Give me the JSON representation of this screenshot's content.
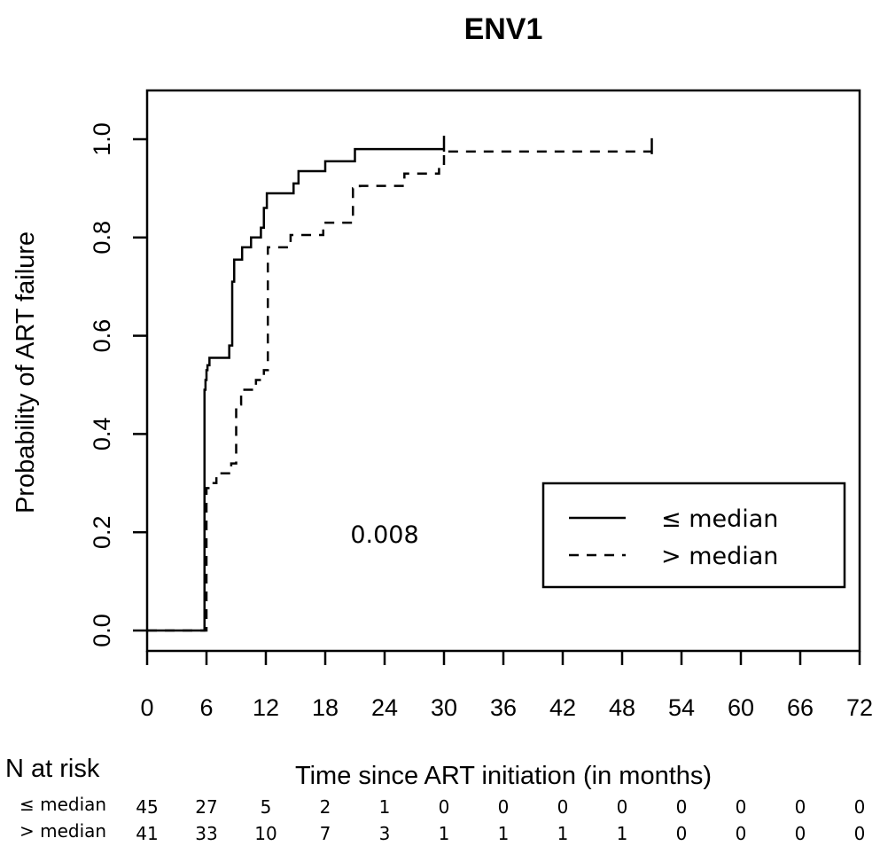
{
  "chart_data": {
    "type": "line",
    "subtype": "kaplan-meier step",
    "title": "ENV1",
    "xlabel": "Time since ART initiation (in months)",
    "ylabel": "Probability of ART failure",
    "xlim": [
      0,
      72
    ],
    "ylim": [
      0,
      1.0
    ],
    "x_ticks": [
      "0",
      "6",
      "12",
      "18",
      "24",
      "30",
      "36",
      "42",
      "48",
      "54",
      "60",
      "66",
      "72"
    ],
    "y_ticks": [
      "0.0",
      "0.2",
      "0.4",
      "0.6",
      "0.8",
      "1.0"
    ],
    "grid": false,
    "legend_position": "right",
    "annotation": "0.008",
    "series": [
      {
        "name": "≤ median",
        "line_style": "solid",
        "x": [
          0,
          5.8,
          5.8,
          5.9,
          6.0,
          6.1,
          6.3,
          6.5,
          8.0,
          8.3,
          8.6,
          8.8,
          9.0,
          9.6,
          10.5,
          11.5,
          11.8,
          12.1,
          14.8,
          15.3,
          18.0,
          21.0,
          30.0
        ],
        "y": [
          0,
          0,
          0.49,
          0.51,
          0.53,
          0.54,
          0.555,
          0.555,
          0.555,
          0.58,
          0.71,
          0.755,
          0.755,
          0.78,
          0.8,
          0.82,
          0.86,
          0.89,
          0.91,
          0.935,
          0.955,
          0.98,
          0.98
        ],
        "censor_x": [
          30
        ]
      },
      {
        "name": "> median",
        "line_style": "dashed",
        "x": [
          0,
          6.0,
          6.0,
          6.2,
          7.0,
          8.5,
          9.0,
          9.5,
          11.0,
          11.8,
          12.2,
          14.5,
          17.8,
          20.8,
          21.5,
          26.0,
          29.5,
          30.0,
          51.0
        ],
        "y": [
          0,
          0,
          0.29,
          0.3,
          0.32,
          0.34,
          0.46,
          0.49,
          0.51,
          0.53,
          0.78,
          0.805,
          0.83,
          0.9,
          0.905,
          0.93,
          0.95,
          0.975,
          0.975
        ],
        "censor_x": [
          51
        ]
      }
    ],
    "risk_table": {
      "header": "N at risk",
      "rows": [
        {
          "label": "≤ median",
          "values": [
            "45",
            "27",
            "5",
            "2",
            "1",
            "0",
            "0",
            "0",
            "0",
            "0",
            "0",
            "0",
            "0"
          ]
        },
        {
          "label": "> median",
          "values": [
            "41",
            "33",
            "10",
            "7",
            "3",
            "1",
            "1",
            "1",
            "1",
            "0",
            "0",
            "0",
            "0"
          ]
        }
      ]
    }
  }
}
